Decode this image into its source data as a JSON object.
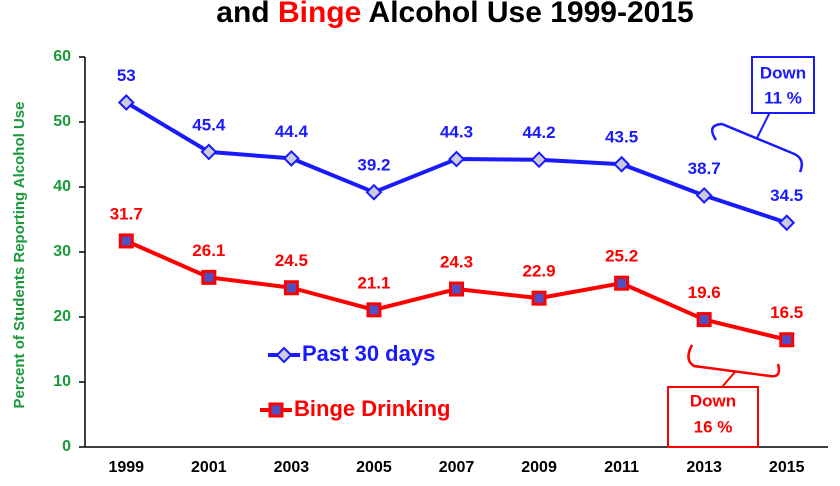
{
  "chart_data": {
    "type": "line",
    "title_parts": [
      "and",
      "Binge",
      "Alcohol Use 1999-2015"
    ],
    "y_label": "Percent of Students Reporting Alcohol Use",
    "categories": [
      "1999",
      "2001",
      "2003",
      "2005",
      "2007",
      "2009",
      "2011",
      "2013",
      "2015"
    ],
    "series": [
      {
        "name": "Past 30 days",
        "color": "#1a1aff",
        "values": [
          53,
          45.4,
          44.4,
          39.2,
          44.3,
          44.2,
          43.5,
          38.7,
          34.5
        ]
      },
      {
        "name": "Binge Drinking",
        "color": "#ff0000",
        "values": [
          31.7,
          26.1,
          24.5,
          21.1,
          24.3,
          22.9,
          25.2,
          19.6,
          16.5
        ]
      }
    ],
    "annotations": [
      {
        "lines": [
          "Down",
          "11 %"
        ],
        "color": "#1a1aff"
      },
      {
        "lines": [
          "Down",
          "16 %"
        ],
        "color": "#ff0000"
      }
    ],
    "ylim": [
      0,
      60
    ],
    "yticks": [
      0,
      10,
      20,
      30,
      40,
      50,
      60
    ],
    "grid": false
  }
}
